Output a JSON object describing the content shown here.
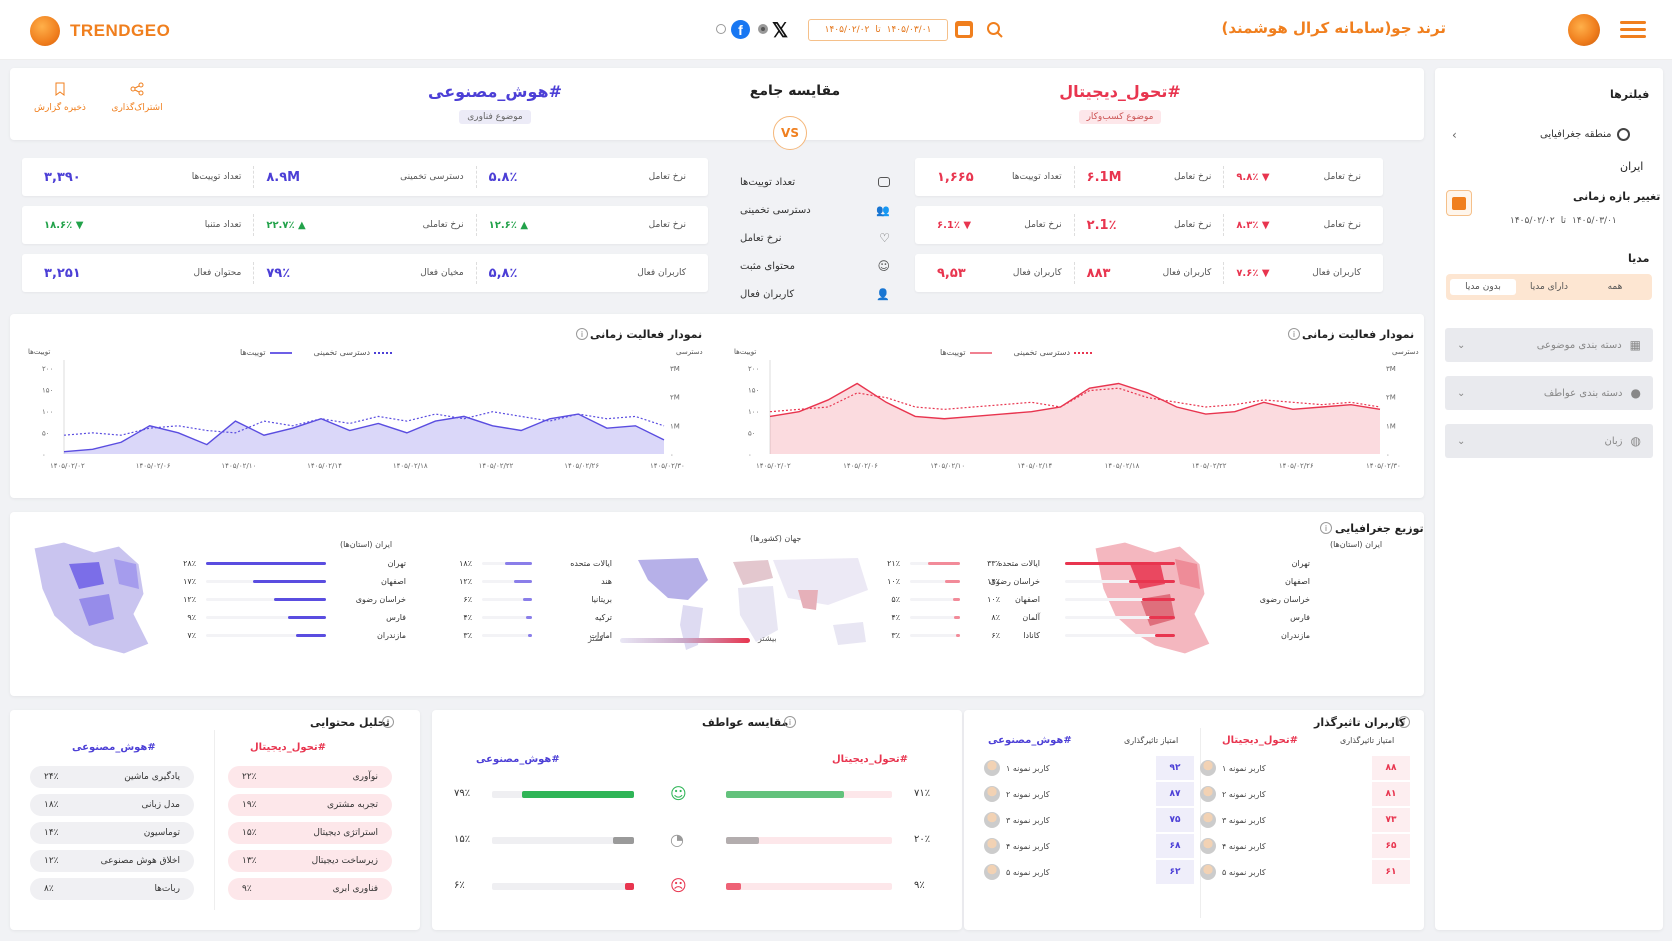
{
  "header": {
    "logo_text": "TRENDGEO",
    "app_title": "ترند جو(سامانه کرال هوشمند)",
    "date_from": "۱۴۰۵/۰۳/۰۱",
    "date_to": "۱۴۰۵/۰۲/۰۲",
    "date_sep": "تا",
    "accent": "#f07f1e"
  },
  "compare": {
    "left_topic": "#تحول_دیجیتال",
    "left_category": "موضوع کسب‌وکار",
    "right_topic": "#هوش_مصنوعی",
    "right_category": "موضوع فناوری",
    "center_title": "مقایسه جامع",
    "vs": "VS",
    "share_label": "اشتراک‌گذاری",
    "save_label": "ذخیره گزارش",
    "red": "#e8354f",
    "blue": "#4c3fd6"
  },
  "metric_labels": [
    "تعداد توییت‌ها",
    "دسترسی تخمینی",
    "نرخ تعامل",
    "محتوای مثبت",
    "کاربران فعال"
  ],
  "metrics_red": [
    [
      {
        "label": "تعداد توییت‌ها",
        "value": "۱,۶۶۵"
      },
      {
        "label": "نرخ تعامل",
        "value": "۶.1M"
      },
      {
        "label": "نرخ تعامل",
        "value": "▼ ۹.۸٪"
      }
    ],
    [
      {
        "label": "نرخ تعامل",
        "value": "▼ ۶.1٪"
      },
      {
        "label": "نرخ تعامل",
        "value": "۲.1٪"
      },
      {
        "label": "نرخ تعامل",
        "value": "▼ ۸.۳٪"
      }
    ],
    [
      {
        "label": "کاربران فعال",
        "value": "۹,۵۳"
      },
      {
        "label": "کاربران فعال",
        "value": "۸۸۳"
      },
      {
        "label": "کاربران فعال",
        "value": "▼ ۷.۶٪"
      }
    ]
  ],
  "metrics_blue": [
    [
      {
        "label": "تعداد توییت‌ها",
        "value": "۳,۳۹۰"
      },
      {
        "label": "دسترسی تخمینی",
        "value": "۸.۹M"
      },
      {
        "label": "نرخ تعامل",
        "value": "۵.۸٪"
      }
    ],
    [
      {
        "label": "تعداد متنبا",
        "value": "▼ ۱۸.۶٪"
      },
      {
        "label": "نرخ تعاملی",
        "value": "▲ ۲۲.۷٪"
      },
      {
        "label": "نرخ تعامل",
        "value": "▲ ۱۲.۶٪"
      }
    ],
    [
      {
        "label": "محتوان فعال",
        "value": "۳,۲۵۱"
      },
      {
        "label": "مخیان فعال",
        "value": "۷۹٪"
      },
      {
        "label": "کاربران فعال",
        "value": "۵,۸٪"
      }
    ]
  ],
  "time_chart": {
    "title": "نمودار فعالیت زمانی",
    "legend_tweets": "توییت‌ها",
    "legend_reach": "دسترسی تخمینی",
    "ylabel_left": "توییت‌ها",
    "ylabel_right": "دسترسی",
    "y_ticks": [
      "۲۰۰",
      "۱۵۰",
      "۱۰۰",
      "۵۰",
      "۰"
    ],
    "y2_ticks": [
      "۳M",
      "۲M",
      "۱M",
      "۰"
    ],
    "x_ticks_left": [
      "۱۴۰۵/۰۲/۰۲",
      "۱۴۰۵/۰۲/۰۶",
      "۱۴۰۵/۰۲/۱۰",
      "۱۴۰۵/۰۲/۱۴",
      "۱۴۰۵/۰۲/۱۸",
      "۱۴۰۵/۰۲/۲۲",
      "۱۴۰۵/۰۲/۲۶",
      "۱۴۰۵/۰۲/۳۰"
    ],
    "x_ticks_right": [
      "۱۴۰۵/۰۲/۰۲",
      "۱۴۰۵/۰۲/۰۶",
      "۱۴۰۵/۰۲/۱۰",
      "۱۴۰۵/۰۲/۱۴",
      "۱۴۰۵/۰۲/۱۸",
      "۱۴۰۵/۰۲/۲۲",
      "۱۴۰۵/۰۲/۲۶",
      "۱۴۰۵/۰۲/۳۰"
    ]
  },
  "chart_data": [
    {
      "type": "area",
      "title": "نمودار فعالیت زمانی",
      "series": [
        {
          "name": "توییت‌ها",
          "values": [
            5,
            10,
            25,
            60,
            45,
            20,
            70,
            40,
            55,
            75,
            50,
            65,
            45,
            70,
            80,
            60,
            50,
            75,
            85,
            55,
            60,
            30
          ]
        },
        {
          "name": "دسترسی تخمینی",
          "values": [
            40,
            45,
            40,
            55,
            60,
            50,
            45,
            70,
            60,
            75,
            65,
            80,
            70,
            85,
            75,
            90,
            80,
            70,
            85,
            75,
            80,
            60
          ]
        }
      ],
      "ylim": [
        0,
        200
      ]
    },
    {
      "type": "area",
      "title": "نمودار فعالیت زمانی",
      "series": [
        {
          "name": "توییت‌ها",
          "values": [
            80,
            90,
            115,
            150,
            110,
            80,
            75,
            80,
            85,
            90,
            100,
            140,
            150,
            130,
            100,
            85,
            90,
            110,
            95,
            100,
            105,
            95
          ]
        },
        {
          "name": "دسترسی تخمینی",
          "values": [
            90,
            95,
            100,
            130,
            120,
            100,
            95,
            100,
            105,
            110,
            100,
            135,
            140,
            120,
            110,
            100,
            105,
            115,
            110,
            105,
            110,
            100
          ]
        }
      ],
      "ylim": [
        0,
        200
      ]
    }
  ],
  "geo": {
    "title": "توزیع جغرافیایی",
    "iran_label": "ایران (استان‌ها)",
    "world_label": "جهان (کشورها)",
    "more": "بیشتر",
    "less": "کمتر",
    "red_iran": [
      {
        "name": "تهران",
        "pct": "۳۳٪",
        "v": 33
      },
      {
        "name": "اصفهان",
        "pct": "۱۴٪",
        "v": 14
      },
      {
        "name": "خراسان رضوی",
        "pct": "۱۰٪",
        "v": 10
      },
      {
        "name": "فارس",
        "pct": "۸٪",
        "v": 8
      },
      {
        "name": "مازندران",
        "pct": "۶٪",
        "v": 6
      }
    ],
    "red_world": [
      {
        "name": "ایالات متحده",
        "pct": "۲۱٪",
        "v": 21
      },
      {
        "name": "خراسان رضوی",
        "pct": "۱۰٪",
        "v": 10
      },
      {
        "name": "اصفهان",
        "pct": "۵٪",
        "v": 5
      },
      {
        "name": "آلمان",
        "pct": "۴٪",
        "v": 4
      },
      {
        "name": "کانادا",
        "pct": "۳٪",
        "v": 3
      }
    ],
    "blue_world": [
      {
        "name": "ایالات متحده",
        "pct": "۱۸٪",
        "v": 18
      },
      {
        "name": "هند",
        "pct": "۱۲٪",
        "v": 12
      },
      {
        "name": "بریتانیا",
        "pct": "۶٪",
        "v": 6
      },
      {
        "name": "ترکیه",
        "pct": "۴٪",
        "v": 4
      },
      {
        "name": "امارات",
        "pct": "۳٪",
        "v": 3
      }
    ],
    "blue_iran": [
      {
        "name": "تهران",
        "pct": "۲۸٪",
        "v": 28
      },
      {
        "name": "اصفهان",
        "pct": "۱۷٪",
        "v": 17
      },
      {
        "name": "خراسان رضوی",
        "pct": "۱۲٪",
        "v": 12
      },
      {
        "name": "فارس",
        "pct": "۹٪",
        "v": 9
      },
      {
        "name": "مازندران",
        "pct": "۷٪",
        "v": 7
      }
    ]
  },
  "content": {
    "title": "تحلیل محتوایی",
    "left_tag": "#تحول_دیجیتال",
    "right_tag": "#هوش_مصنوعی",
    "red_items": [
      {
        "name": "نوآوری",
        "pct": "۲۲٪"
      },
      {
        "name": "تجربه مشتری",
        "pct": "۱۹٪"
      },
      {
        "name": "استراتژی دیجیتال",
        "pct": "۱۵٪"
      },
      {
        "name": "زیرساخت دیجیتال",
        "pct": "۱۳٪"
      },
      {
        "name": "فناوری ابری",
        "pct": "۹٪"
      }
    ],
    "blue_items": [
      {
        "name": "یادگیری ماشین",
        "pct": "۲۴٪"
      },
      {
        "name": "مدل زبانی",
        "pct": "۱۸٪"
      },
      {
        "name": "توماسیون",
        "pct": "۱۴٪"
      },
      {
        "name": "اخلاق هوش مصنوعی",
        "pct": "۱۲٪"
      },
      {
        "name": "ربات‌ها",
        "pct": "۸٪"
      }
    ]
  },
  "sentiment": {
    "title": "مقایسه عواطف",
    "left_tag": "#تحول_دیجیتال",
    "right_tag": "#هوش_مصنوعی",
    "rows": [
      {
        "icon": "smile-icon",
        "red_pct": "۷۱٪",
        "red_v": 71,
        "blue_pct": "۷۹٪",
        "blue_v": 79,
        "color": "#2fb557"
      },
      {
        "icon": "neutral-icon",
        "red_pct": "۲۰٪",
        "red_v": 20,
        "blue_pct": "۱۵٪",
        "blue_v": 15,
        "color": "#9a9a9a"
      },
      {
        "icon": "sad-icon",
        "red_pct": "۹٪",
        "red_v": 9,
        "blue_pct": "۶٪",
        "blue_v": 6,
        "color": "#e8354f"
      }
    ]
  },
  "influencers": {
    "title": "کاربران تاثیرگذار",
    "score_label": "امتیاز تاثیرگذاری",
    "left_tag": "#تحول_دیجیتال",
    "right_tag": "#هوش_مصنوعی",
    "red": [
      {
        "name": "کاربر نمونه ۱",
        "score": "۸۸"
      },
      {
        "name": "کاربر نمونه ۲",
        "score": "۸۱"
      },
      {
        "name": "کاربر نمونه ۳",
        "score": "۷۳"
      },
      {
        "name": "کاربر نمونه ۴",
        "score": "۶۵"
      },
      {
        "name": "کاربر نمونه ۵",
        "score": "۶۱"
      }
    ],
    "blue": [
      {
        "name": "کاربر نمونه ۱",
        "score": "۹۲"
      },
      {
        "name": "کاربر نمونه ۲",
        "score": "۸۷"
      },
      {
        "name": "کاربر نمونه ۳",
        "score": "۷۵"
      },
      {
        "name": "کاربر نمونه ۴",
        "score": "۶۸"
      },
      {
        "name": "کاربر نمونه ۵",
        "score": "۶۲"
      }
    ]
  },
  "sidebar": {
    "title": "فیلترها",
    "geo_label": "منطقه جغرافیایی",
    "geo_value": "ایران",
    "time_label": "تغییر بازه زمانی",
    "time_from": "۱۴۰۵/۰۳/۰۱",
    "time_to": "۱۴۰۵/۰۲/۰۲",
    "time_sep": "تا",
    "media_label": "مدیا",
    "media_options": [
      "همه",
      "دارای مدیا",
      "بدون مدیا"
    ],
    "media_selected": "بدون مدیا",
    "dropdowns": [
      "دسته بندی موضوعی",
      "دسته بندی عواطف",
      "زبان"
    ]
  }
}
